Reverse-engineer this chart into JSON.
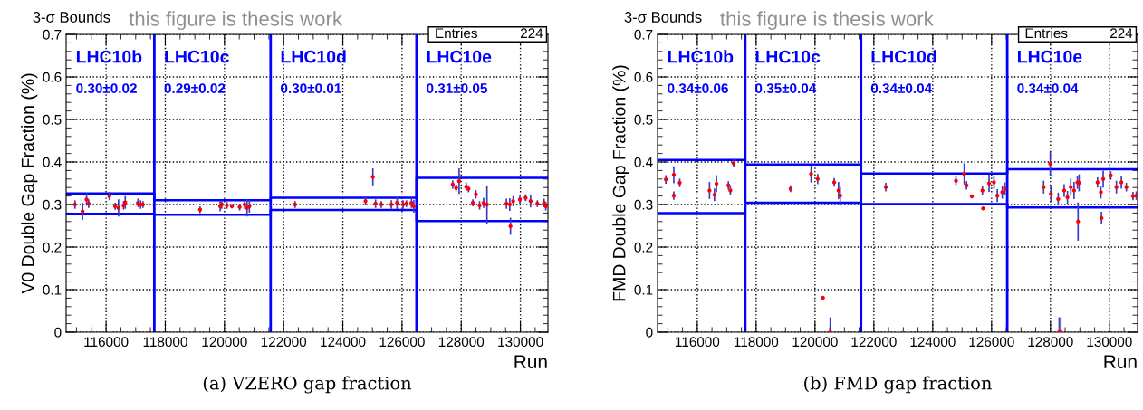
{
  "chart_data": [
    {
      "type": "scatter",
      "title": "3-σ Bounds",
      "subtitle": "this figure is thesis work",
      "xlabel": "Run",
      "ylabel": "V0 Double Gap Fraction (%)",
      "xlim": [
        114650,
        130930
      ],
      "xticks": [
        116000,
        118000,
        120000,
        122000,
        124000,
        126000,
        128000,
        130000
      ],
      "ylim": [
        0,
        0.7
      ],
      "yticks": [
        0,
        0.1,
        0.2,
        0.3,
        0.4,
        0.5,
        0.6,
        0.7
      ],
      "grid": true,
      "series": [
        {
          "marker": "circle",
          "color": "#ff0000",
          "x": [
            114950,
            115206,
            115340,
            115410,
            116110,
            116306,
            116420,
            116590,
            116646,
            117077,
            117168,
            117247,
            119175,
            119856,
            119910,
            120082,
            120252,
            120513,
            120683,
            120763,
            120842,
            122385,
            124766,
            125015,
            125106,
            125299,
            125639,
            125832,
            126035,
            126148,
            126319,
            126398,
            127714,
            127827,
            127929,
            128167,
            128246,
            128394,
            128496,
            128621,
            128757,
            128870,
            129528,
            129641,
            129665,
            129755,
            129982,
            130175,
            130345,
            130572,
            130799,
            130856
          ],
          "values": [
            0.3,
            0.284,
            0.312,
            0.302,
            0.32,
            0.296,
            0.292,
            0.298,
            0.305,
            0.304,
            0.3,
            0.3,
            0.288,
            0.296,
            0.3,
            0.298,
            0.296,
            0.294,
            0.3,
            0.292,
            0.296,
            0.3,
            0.308,
            0.365,
            0.302,
            0.3,
            0.3,
            0.304,
            0.3,
            0.302,
            0.304,
            0.296,
            0.347,
            0.339,
            0.355,
            0.342,
            0.337,
            0.304,
            0.324,
            0.298,
            0.304,
            0.3,
            0.302,
            0.3,
            0.249,
            0.308,
            0.312,
            0.316,
            0.308,
            0.302,
            0.304,
            0.296
          ],
          "errors": [
            0.01,
            0.02,
            0.015,
            0.01,
            0.01,
            0.008,
            0.02,
            0.01,
            0.015,
            0.01,
            0.01,
            0.008,
            0.008,
            0.012,
            0.01,
            0.008,
            0.005,
            0.008,
            0.01,
            0.02,
            0.015,
            0.008,
            0.01,
            0.02,
            0.01,
            0.008,
            0.01,
            0.015,
            0.01,
            0.008,
            0.012,
            0.015,
            0.01,
            0.008,
            0.03,
            0.01,
            0.008,
            0.008,
            0.01,
            0.01,
            0.012,
            0.045,
            0.012,
            0.015,
            0.02,
            0.012,
            0.01,
            0.008,
            0.015,
            0.008,
            0.01,
            0.01
          ]
        },
        {
          "type": "step",
          "color": "#0000ff",
          "x": [
            114650,
            117630,
            121560,
            126490,
            130930
          ],
          "values": [
            0.326,
            0.31,
            0.316,
            0.363,
            0.363
          ]
        },
        {
          "type": "step",
          "color": "#0000ff",
          "x": [
            114650,
            117630,
            121560,
            126490,
            130930
          ],
          "values": [
            0.278,
            0.276,
            0.287,
            0.261,
            0.261
          ]
        }
      ],
      "ref_lines": [
        {
          "axis": "x",
          "value": 117630,
          "color": "#0000ff"
        },
        {
          "axis": "x",
          "value": 121560,
          "color": "#0000ff"
        },
        {
          "axis": "x",
          "value": 126490,
          "color": "#0000ff"
        }
      ],
      "annotations": [
        "Entries",
        "224",
        "(a) VZERO gap fraction",
        "LHC10b",
        "0.30±0.02",
        "LHC10c",
        "0.29±0.02",
        "LHC10d",
        "0.30±0.01",
        "LHC10e",
        "0.31±0.05"
      ]
    },
    {
      "type": "scatter",
      "title": "3-σ Bounds",
      "subtitle": "this figure is thesis work",
      "xlabel": "Run",
      "ylabel": "FMD Double Gap Fraction (%)",
      "xlim": [
        114650,
        130960
      ],
      "xticks": [
        116000,
        118000,
        120000,
        122000,
        124000,
        126000,
        128000,
        130000
      ],
      "ylim": [
        0,
        0.7
      ],
      "yticks": [
        0,
        0.1,
        0.2,
        0.3,
        0.4,
        0.5,
        0.6,
        0.7
      ],
      "grid": true,
      "series": [
        {
          "marker": "circle",
          "color": "#ff0000",
          "x": [
            114932,
            115202,
            115202,
            115404,
            116416,
            116584,
            116652,
            117057,
            117124,
            117236,
            119170,
            119867,
            120091,
            120271,
            120518,
            120653,
            120800,
            120856,
            122407,
            124790,
            125071,
            125149,
            125329,
            125689,
            125711,
            125914,
            126082,
            126195,
            126363,
            126453,
            127768,
            127993,
            128016,
            128263,
            128297,
            128353,
            128466,
            128578,
            128691,
            128803,
            128916,
            128938,
            128972,
            129600,
            129713,
            129735,
            129792,
            130050,
            130241,
            130410,
            130579,
            130804,
            130916
          ],
          "values": [
            0.359,
            0.37,
            0.321,
            0.351,
            0.333,
            0.323,
            0.349,
            0.345,
            0.333,
            0.397,
            0.337,
            0.372,
            0.36,
            0.081,
            0,
            0.352,
            0.333,
            0.321,
            0.341,
            0.356,
            0.372,
            0.345,
            0.319,
            0.333,
            0.291,
            0.35,
            0.352,
            0.321,
            0.329,
            0.337,
            0.341,
            0.396,
            0.325,
            0.313,
            0,
            0,
            0.333,
            0.317,
            0.341,
            0.333,
            0.352,
            0.26,
            0.351,
            0.352,
            0.329,
            0.268,
            0.36,
            0.368,
            0.341,
            0.352,
            0.341,
            0.32,
            0.321
          ],
          "errors": [
            0.01,
            0.02,
            0.01,
            0.01,
            0.02,
            0.015,
            0.02,
            0.01,
            0.01,
            0.01,
            0.008,
            0.02,
            0.012,
            null,
            [
              0,
              0.035
            ],
            0.01,
            0.02,
            0.02,
            0.01,
            0.01,
            0.025,
            0.01,
            null,
            0.01,
            null,
            0.02,
            0.015,
            0.015,
            0.015,
            0.015,
            0.015,
            0.03,
            0.02,
            0.015,
            [
              0,
              0.035
            ],
            [
              0,
              0.035
            ],
            0.015,
            0.015,
            0.02,
            0.02,
            0.015,
            0.045,
            0.02,
            0.012,
            0.015,
            0.015,
            0.02,
            0.01,
            0.015,
            0.015,
            0.01,
            0.01,
            0.01
          ]
        },
        {
          "type": "step",
          "color": "#0000ff",
          "x": [
            114650,
            117630,
            121564,
            126532,
            130960
          ],
          "values": [
            0.405,
            0.394,
            0.373,
            0.383,
            0.383
          ]
        },
        {
          "type": "step",
          "color": "#0000ff",
          "x": [
            114650,
            117630,
            121564,
            126532,
            130960
          ],
          "values": [
            0.28,
            0.304,
            0.301,
            0.293,
            0.293
          ]
        }
      ],
      "ref_lines": [
        {
          "axis": "x",
          "value": 117630,
          "color": "#0000ff"
        },
        {
          "axis": "x",
          "value": 121564,
          "color": "#0000ff"
        },
        {
          "axis": "x",
          "value": 126532,
          "color": "#0000ff"
        }
      ],
      "annotations": [
        "Entries",
        "224",
        "(b) FMD gap fraction",
        "LHC10b",
        "0.34±0.06",
        "LHC10c",
        "0.35±0.04",
        "LHC10d",
        "0.34±0.04",
        "LHC10e",
        "0.34±0.04"
      ]
    }
  ]
}
